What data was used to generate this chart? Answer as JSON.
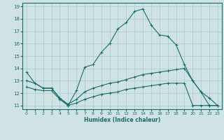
{
  "xlabel": "Humidex (Indice chaleur)",
  "xlim": [
    -0.5,
    23.5
  ],
  "ylim": [
    10.7,
    19.3
  ],
  "yticks": [
    11,
    12,
    13,
    14,
    15,
    16,
    17,
    18,
    19
  ],
  "xticks": [
    0,
    1,
    2,
    3,
    4,
    5,
    6,
    7,
    8,
    9,
    10,
    11,
    12,
    13,
    14,
    15,
    16,
    17,
    18,
    19,
    20,
    21,
    22,
    23
  ],
  "bg_color": "#cfe3e5",
  "grid_color": "#aac8cb",
  "line_color": "#1a6b6b",
  "line1_x": [
    0,
    1,
    2,
    3,
    4,
    5,
    6,
    7,
    8,
    9,
    10,
    11,
    12,
    13,
    14,
    15,
    16,
    17,
    18,
    19,
    20,
    21,
    22,
    23
  ],
  "line1_y": [
    13.7,
    12.8,
    12.4,
    12.4,
    11.6,
    11.0,
    12.2,
    14.1,
    14.3,
    15.3,
    16.0,
    17.2,
    17.7,
    18.6,
    18.8,
    17.5,
    16.7,
    16.6,
    15.9,
    14.3,
    13.0,
    12.1,
    11.6,
    11.0
  ],
  "line2_x": [
    0,
    1,
    2,
    3,
    4,
    5,
    6,
    7,
    8,
    9,
    10,
    11,
    12,
    13,
    14,
    15,
    16,
    17,
    18,
    19,
    20,
    21,
    22,
    23
  ],
  "line2_y": [
    13.0,
    12.8,
    12.4,
    12.4,
    11.6,
    11.1,
    11.5,
    12.1,
    12.4,
    12.6,
    12.8,
    12.9,
    13.1,
    13.3,
    13.5,
    13.6,
    13.7,
    13.8,
    13.9,
    14.0,
    13.0,
    12.1,
    11.0,
    11.0
  ],
  "line3_x": [
    0,
    1,
    2,
    3,
    4,
    5,
    6,
    7,
    8,
    9,
    10,
    11,
    12,
    13,
    14,
    15,
    16,
    17,
    18,
    19,
    20,
    21,
    22,
    23
  ],
  "line3_y": [
    12.5,
    12.3,
    12.2,
    12.2,
    11.5,
    11.0,
    11.2,
    11.5,
    11.7,
    11.9,
    12.0,
    12.1,
    12.3,
    12.4,
    12.5,
    12.6,
    12.7,
    12.8,
    12.8,
    12.8,
    11.0,
    11.0,
    11.0,
    11.0
  ]
}
